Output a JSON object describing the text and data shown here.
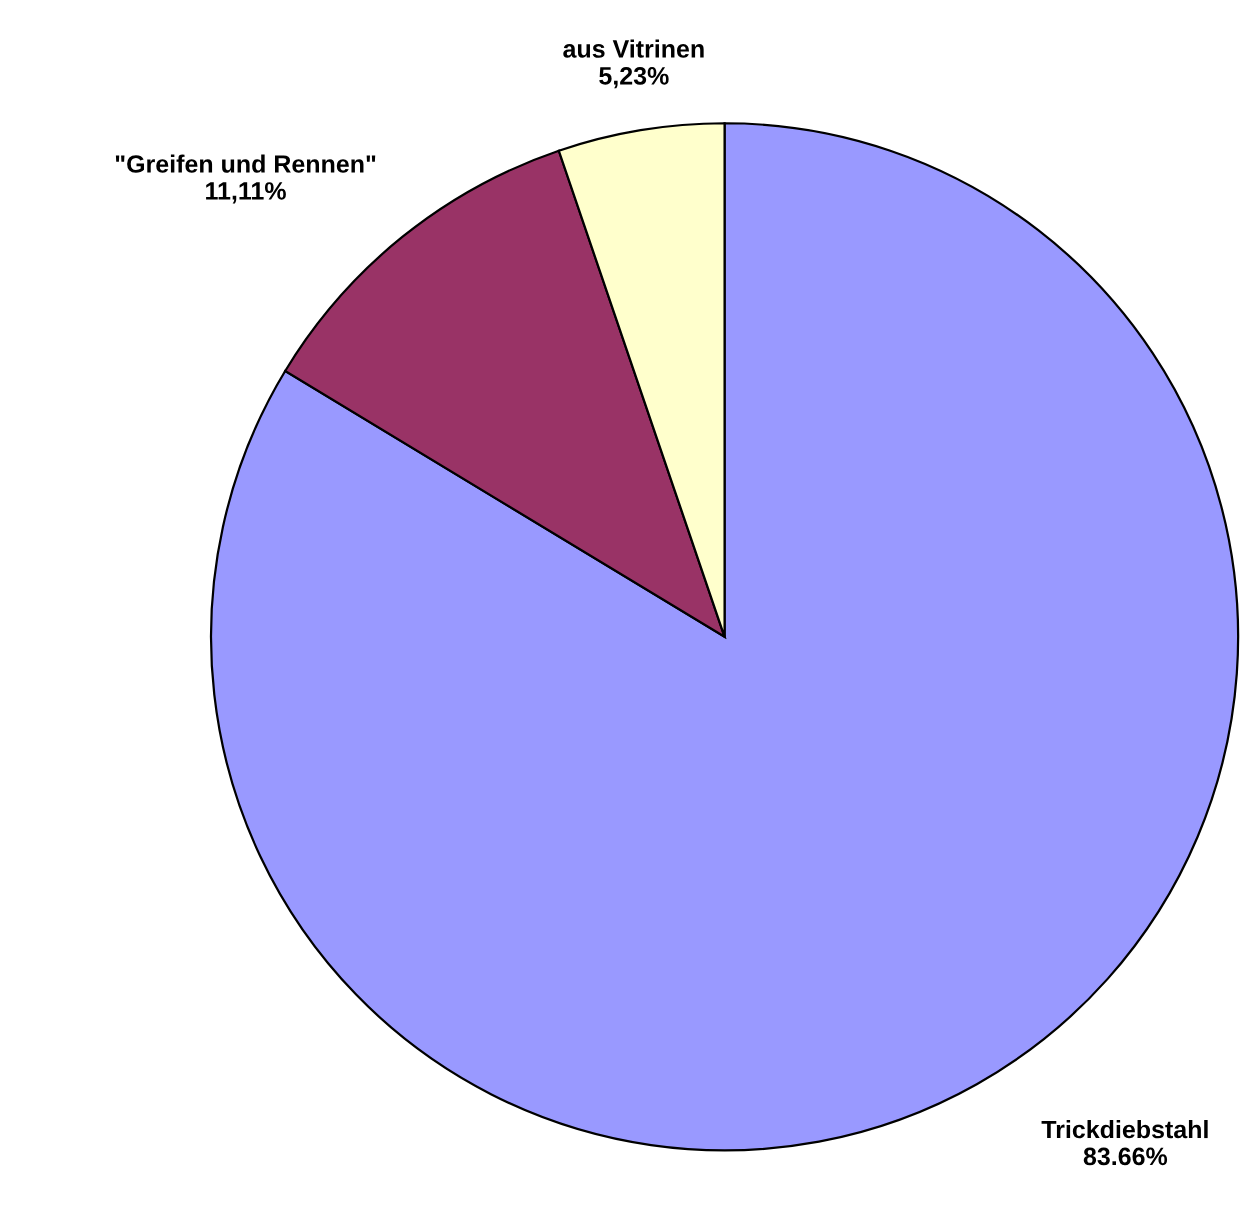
{
  "chart_data": {
    "type": "pie",
    "categories": [
      "Trickdiebstahl",
      "\"Greifen und Rennen\"",
      "aus Vitrinen"
    ],
    "values": [
      83.66,
      11.11,
      5.23
    ],
    "value_labels": [
      "83.66%",
      "11,11%",
      "5,23%"
    ],
    "colors": [
      "#9999ff",
      "#993366",
      "#ffffcc"
    ],
    "legend": false
  }
}
